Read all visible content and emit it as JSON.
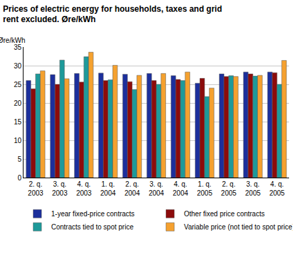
{
  "chart_data": {
    "type": "bar",
    "title": "Prices of electric energy for households, taxes and grid rent excluded. Øre/kWh",
    "ylabel": "Øre/kWh",
    "categories": [
      "2. q. 2003",
      "3. q. 2003",
      "4. q. 2003",
      "1. q. 2004",
      "2. q. 2004",
      "3. q. 2004",
      "4. q. 2004",
      "1. q. 2005",
      "2. q. 2005",
      "3. q. 2005",
      "4. q. 2005"
    ],
    "series": [
      {
        "name": "1-year fixed-price contracts",
        "color": "#1c2f9c",
        "values": [
          26.0,
          27.6,
          27.9,
          28.0,
          27.7,
          27.9,
          27.3,
          25.3,
          27.8,
          28.3,
          28.3
        ]
      },
      {
        "name": "Other fixed price contracts",
        "color": "#8c0b0b",
        "values": [
          23.8,
          25.0,
          25.6,
          26.0,
          25.7,
          26.0,
          26.3,
          26.6,
          27.1,
          27.8,
          28.1
        ]
      },
      {
        "name": "Contracts tied to spot price",
        "color": "#1e9a9a",
        "values": [
          27.8,
          31.5,
          32.4,
          26.2,
          23.6,
          25.0,
          26.0,
          21.7,
          27.3,
          27.2,
          25.0
        ]
      },
      {
        "name": "Variable price (not tied to spot price)",
        "color": "#f5a12f",
        "values": [
          28.6,
          26.5,
          33.6,
          30.1,
          27.4,
          27.9,
          28.3,
          24.0,
          27.1,
          27.4,
          31.4
        ]
      }
    ],
    "ylim": [
      0,
      35
    ],
    "yticks": [
      0,
      5,
      10,
      15,
      20,
      25,
      30,
      35
    ],
    "grid": true,
    "legend": "bottom"
  }
}
